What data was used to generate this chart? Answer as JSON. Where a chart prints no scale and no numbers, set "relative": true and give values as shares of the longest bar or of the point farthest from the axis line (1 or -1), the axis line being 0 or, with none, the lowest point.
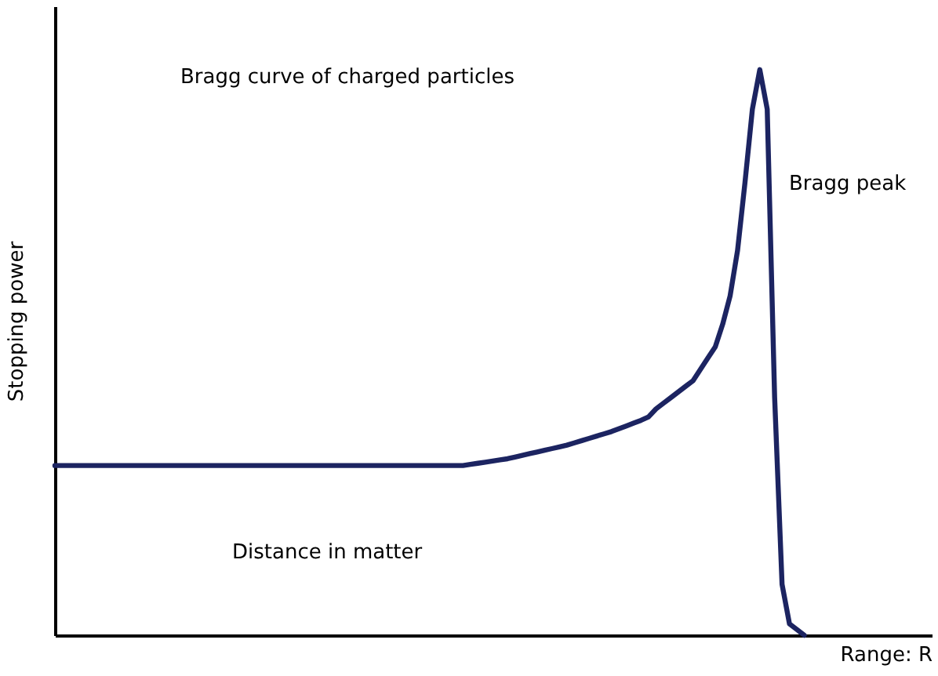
{
  "chart_data": {
    "type": "line",
    "relative": true,
    "ylabel": "Stopping power",
    "xlabel": "Range: R",
    "marker": "none",
    "line_style": "solid",
    "annotations": [
      "Bragg curve of charged particles",
      "Bragg peak",
      "Distance in matter"
    ],
    "categories": [
      null,
      null,
      null,
      null,
      null,
      null,
      null,
      null,
      null,
      null,
      null,
      null,
      null,
      null,
      null,
      null,
      null,
      null,
      null,
      null,
      null,
      null,
      null,
      null,
      null,
      null,
      null,
      null,
      null,
      null,
      null,
      null,
      null,
      null,
      null,
      null,
      null,
      null,
      null,
      null,
      null,
      null,
      null,
      null,
      null,
      null,
      null,
      null,
      null,
      null,
      null,
      null,
      null,
      null,
      null,
      null,
      null,
      null,
      null,
      null,
      null,
      null,
      null,
      null,
      null,
      null,
      null,
      null,
      null,
      null,
      null,
      null,
      null,
      null,
      null,
      null,
      null,
      null,
      null,
      null,
      null,
      null,
      null,
      null,
      null,
      null,
      null,
      null,
      null,
      null,
      null,
      null,
      null,
      null,
      null,
      null,
      null,
      null,
      null,
      null,
      null,
      null
    ],
    "series": [
      {
        "color": "#1c2461",
        "values": [
          0.3,
          0.3,
          0.3,
          0.3,
          0.3,
          0.3,
          0.3,
          0.3,
          0.3,
          0.3,
          0.3,
          0.3,
          0.3,
          0.3,
          0.3,
          0.3,
          0.3,
          0.3,
          0.3,
          0.3,
          0.3,
          0.3,
          0.3,
          0.3,
          0.3,
          0.3,
          0.3,
          0.3,
          0.3,
          0.3,
          0.3,
          0.3,
          0.3,
          0.3,
          0.3,
          0.3,
          0.3,
          0.3,
          0.3,
          0.3,
          0.3,
          0.3,
          0.3,
          0.3,
          0.3,
          0.3,
          0.3,
          0.3,
          0.3,
          0.3,
          0.3,
          0.3,
          0.3,
          0.3,
          0.3,
          0.3,
          0.302,
          0.304,
          0.306,
          0.308,
          0.31,
          0.312,
          0.315,
          0.318,
          0.321,
          0.324,
          0.327,
          0.33,
          0.333,
          0.336,
          0.34,
          0.344,
          0.348,
          0.352,
          0.356,
          0.36,
          0.365,
          0.37,
          0.375,
          0.38,
          0.386,
          0.4,
          0.41,
          0.42,
          0.43,
          0.44,
          0.45,
          0.47,
          0.49,
          0.51,
          0.55,
          0.6,
          0.68,
          0.8,
          0.93,
          1,
          0.93,
          0.42,
          0.09,
          0.02,
          0.01,
          0
        ]
      }
    ]
  }
}
